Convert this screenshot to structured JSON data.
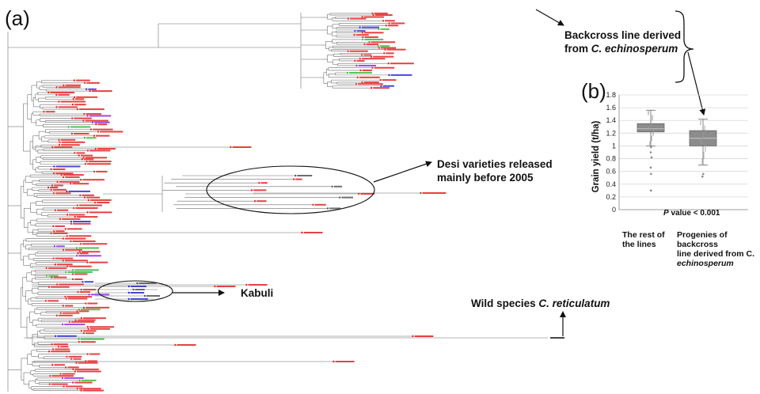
{
  "panels": {
    "a": "(a)",
    "b": "(b)"
  },
  "annotations": {
    "backcross": {
      "line1": "Backcross line derived",
      "line2_prefix": "from ",
      "line2_species": "C. echinosperum"
    },
    "desi": {
      "line1": "Desi varieties released",
      "line2": "mainly before 2005"
    },
    "kabuli": "Kabuli",
    "wild": {
      "prefix": "Wild species ",
      "species": "C. reticulatum"
    }
  },
  "colors": {
    "branch": "#6e6e6e",
    "leaf_red": "#e02020",
    "leaf_blue": "#2828d0",
    "leaf_green": "#30b830",
    "leaf_purple": "#8a2be2",
    "box_fill": "#8c8c8c"
  },
  "chart_data": {
    "type": "boxplot",
    "ylabel": "Grain yield (t/ha)",
    "ylim": [
      0,
      1.8
    ],
    "yticks": [
      "0",
      "0.2",
      "0.4",
      "0.6",
      "0.8",
      "1",
      "1.2",
      "1.4",
      "1.6",
      "1.8"
    ],
    "categories": [
      {
        "lines": [
          "The rest of",
          "the lines"
        ]
      },
      {
        "lines": [
          "Progenies of backcross",
          "line derived from C.",
          "echinosperum"
        ]
      }
    ],
    "boxes": [
      {
        "whisker_low": 1.0,
        "q1": 1.22,
        "median": 1.27,
        "q3": 1.35,
        "whisker_high": 1.56,
        "outliers": [
          0.98,
          0.9,
          0.82,
          0.66,
          0.56,
          0.3
        ]
      },
      {
        "whisker_low": 0.7,
        "q1": 1.0,
        "median": 1.12,
        "q3": 1.24,
        "whisker_high": 1.42,
        "outliers": [
          0.56,
          0.52
        ]
      }
    ],
    "pvalue": {
      "label": "P",
      "text": " value < 0.001"
    }
  }
}
